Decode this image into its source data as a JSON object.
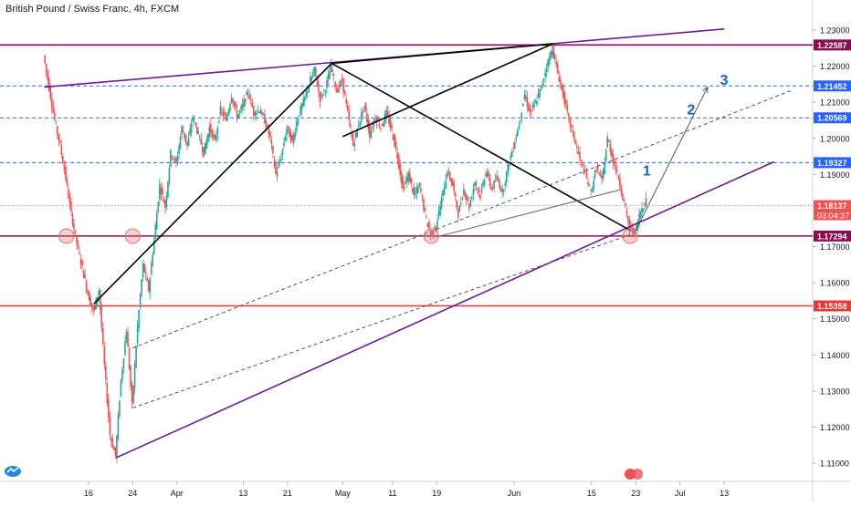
{
  "header": {
    "title": "British Pound / Swiss Franc, 4h, FXCM"
  },
  "chart_data": {
    "type": "line",
    "title": "British Pound / Swiss Franc, 4h, FXCM",
    "symbol": "GBPCHF",
    "timeframe": "4h",
    "ylim": [
      1.104,
      1.236
    ],
    "y_ticks": [
      {
        "value": 1.23,
        "label": "1.23000"
      },
      {
        "value": 1.22,
        "label": "1.22000"
      },
      {
        "value": 1.21,
        "label": "1.21000"
      },
      {
        "value": 1.2,
        "label": "1.20000"
      },
      {
        "value": 1.19,
        "label": "1.19000"
      },
      {
        "value": 1.17,
        "label": "1.17000"
      },
      {
        "value": 1.16,
        "label": "1.16000"
      },
      {
        "value": 1.15,
        "label": "1.15000"
      },
      {
        "value": 1.14,
        "label": "1.14000"
      },
      {
        "value": 1.13,
        "label": "1.13000"
      },
      {
        "value": 1.12,
        "label": "1.12000"
      },
      {
        "value": 1.11,
        "label": "1.11000"
      }
    ],
    "x_ticks": [
      {
        "t": 16,
        "label": "16"
      },
      {
        "t": 24,
        "label": "24"
      },
      {
        "t": 32,
        "label": "Apr"
      },
      {
        "t": 44,
        "label": "13"
      },
      {
        "t": 52,
        "label": "21"
      },
      {
        "t": 62,
        "label": "May"
      },
      {
        "t": 71,
        "label": "11"
      },
      {
        "t": 79,
        "label": "19"
      },
      {
        "t": 93,
        "label": "Jun"
      },
      {
        "t": 107,
        "label": "15"
      },
      {
        "t": 115,
        "label": "23"
      },
      {
        "t": 123,
        "label": "Jul"
      },
      {
        "t": 131,
        "label": "13"
      }
    ],
    "price_lines": [
      {
        "value": 1.22587,
        "label": "1.22587",
        "color": "#880e4f",
        "style": "solid"
      },
      {
        "value": 1.21452,
        "label": "1.21452",
        "color": "#2962ff",
        "style": "dashed"
      },
      {
        "value": 1.20569,
        "label": "1.20569",
        "color": "#2962ff",
        "style": "dashed"
      },
      {
        "value": 1.19327,
        "label": "1.19327",
        "color": "#2962ff",
        "style": "dashed"
      },
      {
        "value": 1.17294,
        "label": "1.17294",
        "color": "#880e4f",
        "style": "solid"
      },
      {
        "value": 1.15358,
        "label": "1.15358",
        "color": "#e53935",
        "style": "solid"
      }
    ],
    "current_price": {
      "value": 1.18137,
      "label": "1.18137",
      "countdown": "03:04:37",
      "color": "#ef5350"
    },
    "price_path": [
      [
        8,
        1.223
      ],
      [
        9,
        1.214
      ],
      [
        10,
        1.205
      ],
      [
        11,
        1.198
      ],
      [
        12,
        1.189
      ],
      [
        13,
        1.179
      ],
      [
        14,
        1.171
      ],
      [
        15,
        1.164
      ],
      [
        16,
        1.157
      ],
      [
        17,
        1.152
      ],
      [
        18,
        1.158
      ],
      [
        19,
        1.137
      ],
      [
        20,
        1.118
      ],
      [
        21,
        1.112
      ],
      [
        22,
        1.133
      ],
      [
        23,
        1.147
      ],
      [
        24,
        1.126
      ],
      [
        25,
        1.148
      ],
      [
        26,
        1.165
      ],
      [
        27,
        1.158
      ],
      [
        28,
        1.172
      ],
      [
        29,
        1.187
      ],
      [
        30,
        1.181
      ],
      [
        31,
        1.196
      ],
      [
        32,
        1.193
      ],
      [
        33,
        1.203
      ],
      [
        34,
        1.198
      ],
      [
        35,
        1.206
      ],
      [
        36,
        1.201
      ],
      [
        37,
        1.196
      ],
      [
        38,
        1.203
      ],
      [
        39,
        1.199
      ],
      [
        40,
        1.208
      ],
      [
        41,
        1.205
      ],
      [
        42,
        1.212
      ],
      [
        43,
        1.206
      ],
      [
        44,
        1.209
      ],
      [
        45,
        1.213
      ],
      [
        46,
        1.207
      ],
      [
        47,
        1.208
      ],
      [
        48,
        1.205
      ],
      [
        49,
        1.2
      ],
      [
        50,
        1.19
      ],
      [
        51,
        1.195
      ],
      [
        52,
        1.203
      ],
      [
        53,
        1.199
      ],
      [
        54,
        1.206
      ],
      [
        55,
        1.21
      ],
      [
        56,
        1.215
      ],
      [
        57,
        1.219
      ],
      [
        58,
        1.211
      ],
      [
        59,
        1.214
      ],
      [
        60,
        1.22
      ],
      [
        61,
        1.213
      ],
      [
        62,
        1.216
      ],
      [
        63,
        1.207
      ],
      [
        64,
        1.198
      ],
      [
        65,
        1.204
      ],
      [
        66,
        1.209
      ],
      [
        67,
        1.201
      ],
      [
        68,
        1.206
      ],
      [
        69,
        1.203
      ],
      [
        70,
        1.207
      ],
      [
        71,
        1.202
      ],
      [
        72,
        1.195
      ],
      [
        73,
        1.186
      ],
      [
        74,
        1.19
      ],
      [
        75,
        1.184
      ],
      [
        76,
        1.187
      ],
      [
        77,
        1.179
      ],
      [
        78,
        1.173
      ],
      [
        79,
        1.176
      ],
      [
        80,
        1.183
      ],
      [
        81,
        1.191
      ],
      [
        82,
        1.187
      ],
      [
        83,
        1.179
      ],
      [
        84,
        1.186
      ],
      [
        85,
        1.181
      ],
      [
        86,
        1.188
      ],
      [
        87,
        1.184
      ],
      [
        88,
        1.191
      ],
      [
        89,
        1.186
      ],
      [
        90,
        1.189
      ],
      [
        91,
        1.185
      ],
      [
        92,
        1.192
      ],
      [
        93,
        1.198
      ],
      [
        94,
        1.204
      ],
      [
        95,
        1.212
      ],
      [
        96,
        1.207
      ],
      [
        97,
        1.21
      ],
      [
        98,
        1.214
      ],
      [
        99,
        1.22
      ],
      [
        100,
        1.225
      ],
      [
        101,
        1.218
      ],
      [
        102,
        1.212
      ],
      [
        103,
        1.205
      ],
      [
        104,
        1.2
      ],
      [
        105,
        1.194
      ],
      [
        106,
        1.19
      ],
      [
        107,
        1.185
      ],
      [
        108,
        1.192
      ],
      [
        109,
        1.188
      ],
      [
        110,
        1.2
      ],
      [
        111,
        1.194
      ],
      [
        112,
        1.189
      ],
      [
        113,
        1.182
      ],
      [
        114,
        1.175
      ],
      [
        115,
        1.174
      ],
      [
        116,
        1.18
      ],
      [
        117,
        1.183
      ]
    ],
    "trend_lines": [
      {
        "name": "upper-channel-line",
        "from": [
          8,
          1.2142
        ],
        "to": [
          131,
          1.2303
        ],
        "color": "#6a1b9a",
        "width": 1.6,
        "dash": false
      },
      {
        "name": "lower-channel-line",
        "from": [
          21,
          1.1115
        ],
        "to": [
          140,
          1.1935
        ],
        "color": "#6a1b9a",
        "width": 1.6,
        "dash": false
      },
      {
        "name": "black-rise-line-1",
        "from": [
          17,
          1.1542
        ],
        "to": [
          60,
          1.2208
        ],
        "color": "#000000",
        "width": 1.6,
        "dash": false
      },
      {
        "name": "black-rise-line-2",
        "from": [
          60,
          1.2208
        ],
        "to": [
          100,
          1.2262
        ],
        "color": "#000000",
        "width": 1.6,
        "dash": false
      },
      {
        "name": "black-fall-line",
        "from": [
          60,
          1.2208
        ],
        "to": [
          114,
          1.1745
        ],
        "color": "#000000",
        "width": 1.6,
        "dash": false
      },
      {
        "name": "black-diagonal-line",
        "from": [
          62,
          1.2005
        ],
        "to": [
          100,
          1.2262
        ],
        "color": "#000000",
        "width": 1.6,
        "dash": false
      },
      {
        "name": "dashed-trend-line-1",
        "from": [
          24,
          1.1419
        ],
        "to": [
          143,
          1.2132
        ],
        "color": "#555555",
        "width": 1,
        "dash": true
      },
      {
        "name": "dashed-trend-line-2",
        "from": [
          24,
          1.1253
        ],
        "to": [
          114,
          1.1733
        ],
        "color": "#555555",
        "width": 1,
        "dash": true
      },
      {
        "name": "grey-support-line",
        "from": [
          79,
          1.1727
        ],
        "to": [
          112,
          1.1857
        ],
        "color": "#666666",
        "width": 1,
        "dash": false
      },
      {
        "name": "projection-arrow-line",
        "from": [
          115,
          1.1745
        ],
        "to": [
          128,
          1.2142
        ],
        "color": "#555555",
        "width": 1,
        "dash": false,
        "arrow": true
      }
    ],
    "highlight_circles": [
      {
        "name": "circle-touch-1",
        "at": [
          12,
          1.1729
        ],
        "color": "#e57373"
      },
      {
        "name": "circle-touch-2",
        "at": [
          24,
          1.1729
        ],
        "color": "#e57373"
      },
      {
        "name": "circle-touch-3",
        "at": [
          78,
          1.1729
        ],
        "color": "#e57373"
      },
      {
        "name": "circle-touch-4",
        "at": [
          114,
          1.1729
        ],
        "color": "#e57373"
      }
    ],
    "annotations": [
      {
        "name": "target-label-1",
        "text": "1",
        "at": [
          117,
          1.1897
        ],
        "color": "#1565c0"
      },
      {
        "name": "target-label-2",
        "text": "2",
        "at": [
          125,
          1.2066
        ],
        "color": "#1565c0"
      },
      {
        "name": "target-label-3",
        "text": "3",
        "at": [
          131,
          1.2149
        ],
        "color": "#1565c0"
      }
    ],
    "colors": {
      "up": "#26a69a",
      "down": "#ef5350",
      "axis_text": "#131722",
      "purple": "#6a1b9a"
    }
  }
}
